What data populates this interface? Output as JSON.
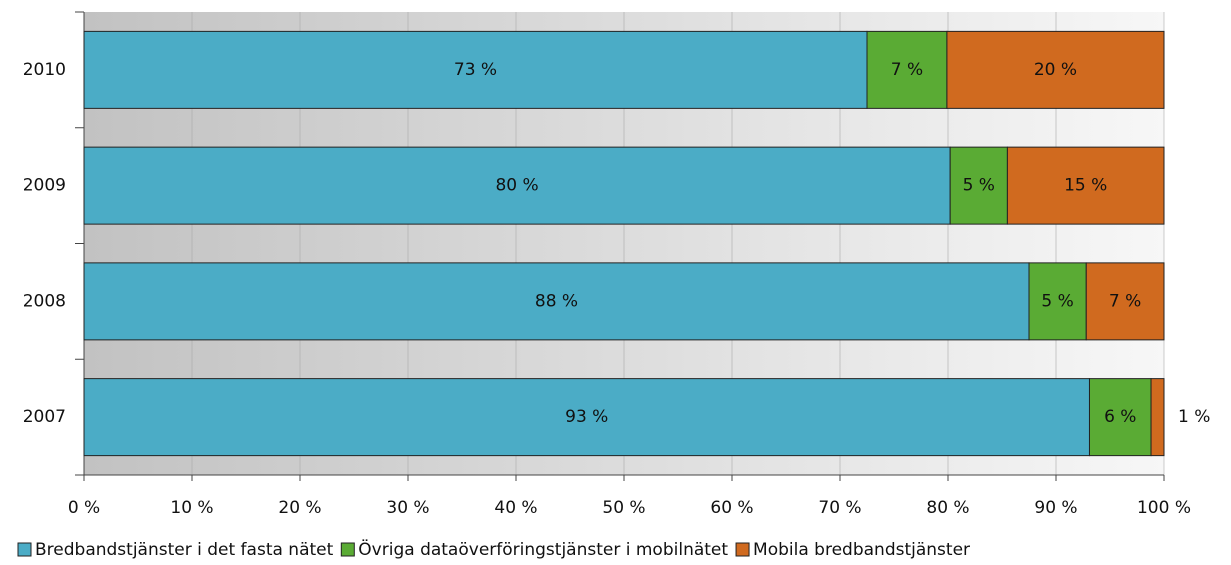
{
  "chart_data": {
    "type": "stacked_barh",
    "categories": [
      "2010",
      "2009",
      "2008",
      "2007"
    ],
    "series": [
      {
        "name": "Bredbandstjänster i det fasta nätet",
        "color": "#4bacc6",
        "values": [
          72.5,
          80.2,
          87.5,
          93.1
        ],
        "value_labels": [
          "73 %",
          "80 %",
          "88 %",
          "93 %"
        ]
      },
      {
        "name": "Övriga dataöverföringstjänster i mobilnätet",
        "color": "#5aab34",
        "values": [
          7.4,
          5.3,
          5.3,
          5.7
        ],
        "value_labels": [
          "7 %",
          "5 %",
          "5 %",
          "6 %"
        ]
      },
      {
        "name": "Mobila bredbandstjänster",
        "color": "#d06a1f",
        "values": [
          20.1,
          14.5,
          7.2,
          1.2
        ],
        "value_labels": [
          "20 %",
          "15 %",
          "7 %",
          "1 %"
        ]
      }
    ],
    "xlim": [
      0,
      100
    ],
    "xticks": [
      {
        "value": 0,
        "label": "0 %"
      },
      {
        "value": 10,
        "label": "10 %"
      },
      {
        "value": 20,
        "label": "20 %"
      },
      {
        "value": 30,
        "label": "30 %"
      },
      {
        "value": 40,
        "label": "40 %"
      },
      {
        "value": 50,
        "label": "50 %"
      },
      {
        "value": 60,
        "label": "60 %"
      },
      {
        "value": 70,
        "label": "70 %"
      },
      {
        "value": 80,
        "label": "80 %"
      },
      {
        "value": 90,
        "label": "90 %"
      },
      {
        "value": 100,
        "label": "100 %"
      }
    ],
    "grid": true,
    "legend": "bottom"
  }
}
